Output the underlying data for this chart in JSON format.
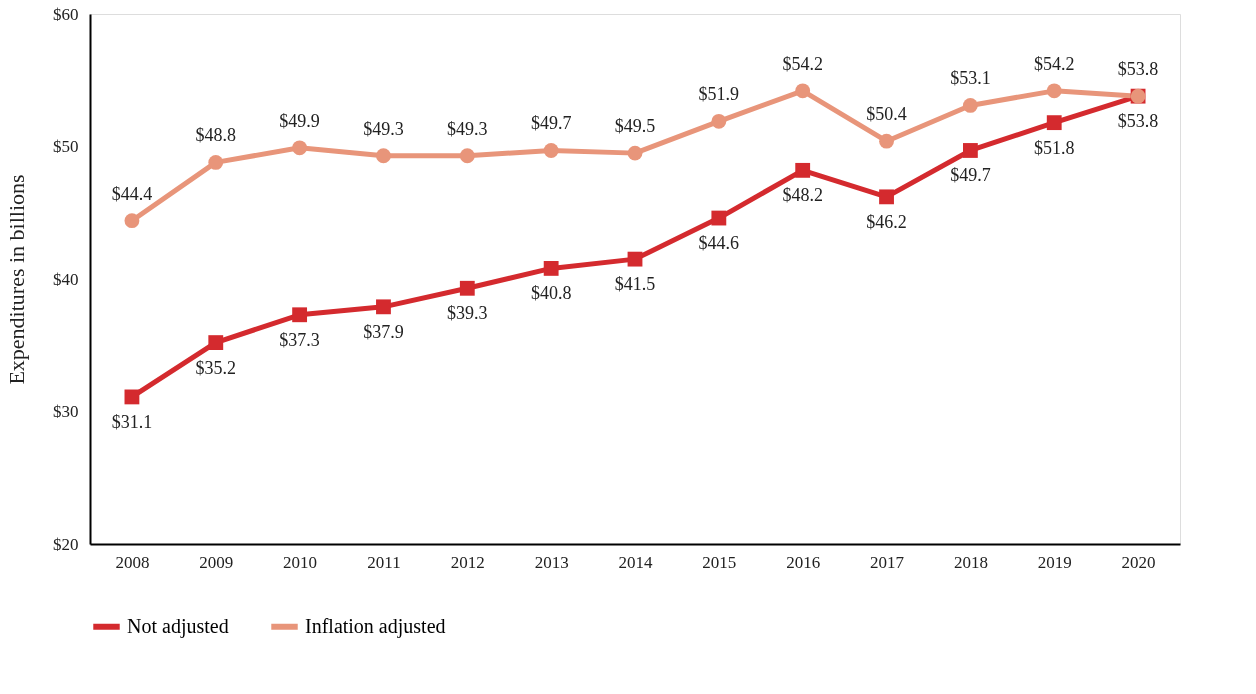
{
  "chart_data": {
    "type": "line",
    "ylabel": "Expenditures in billions",
    "categories": [
      "2008",
      "2009",
      "2010",
      "2011",
      "2012",
      "2013",
      "2014",
      "2015",
      "2016",
      "2017",
      "2018",
      "2019",
      "2020"
    ],
    "series": [
      {
        "name": "Not adjusted",
        "color": "#d42a2e",
        "marker": "square",
        "values": [
          31.1,
          35.2,
          37.3,
          37.9,
          39.3,
          40.8,
          41.5,
          44.6,
          48.2,
          46.2,
          49.7,
          51.8,
          53.8
        ],
        "value_labels": [
          "$31.1",
          "$35.2",
          "$37.3",
          "$37.9",
          "$39.3",
          "$40.8",
          "$41.5",
          "$44.6",
          "$48.2",
          "$46.2",
          "$49.7",
          "$51.8",
          "$53.8"
        ]
      },
      {
        "name": "Inflation adjusted",
        "color": "#e8957a",
        "marker": "circle",
        "values": [
          44.4,
          48.8,
          49.9,
          49.3,
          49.3,
          49.7,
          49.5,
          51.9,
          54.2,
          50.4,
          53.1,
          54.2,
          53.8
        ],
        "value_labels": [
          "$44.4",
          "$48.8",
          "$49.9",
          "$49.3",
          "$49.3",
          "$49.7",
          "$49.5",
          "$51.9",
          "$54.2",
          "$50.4",
          "$53.1",
          "$54.2",
          "$53.8"
        ]
      }
    ],
    "ylim": [
      20,
      60
    ],
    "yticks": [
      {
        "value": 20,
        "label": "$20"
      },
      {
        "value": 30,
        "label": "$30"
      },
      {
        "value": 40,
        "label": "$40"
      },
      {
        "value": 50,
        "label": "$50"
      },
      {
        "value": 60,
        "label": "$60"
      }
    ],
    "grid": false,
    "legend": "bottom",
    "line_style": "solid"
  }
}
